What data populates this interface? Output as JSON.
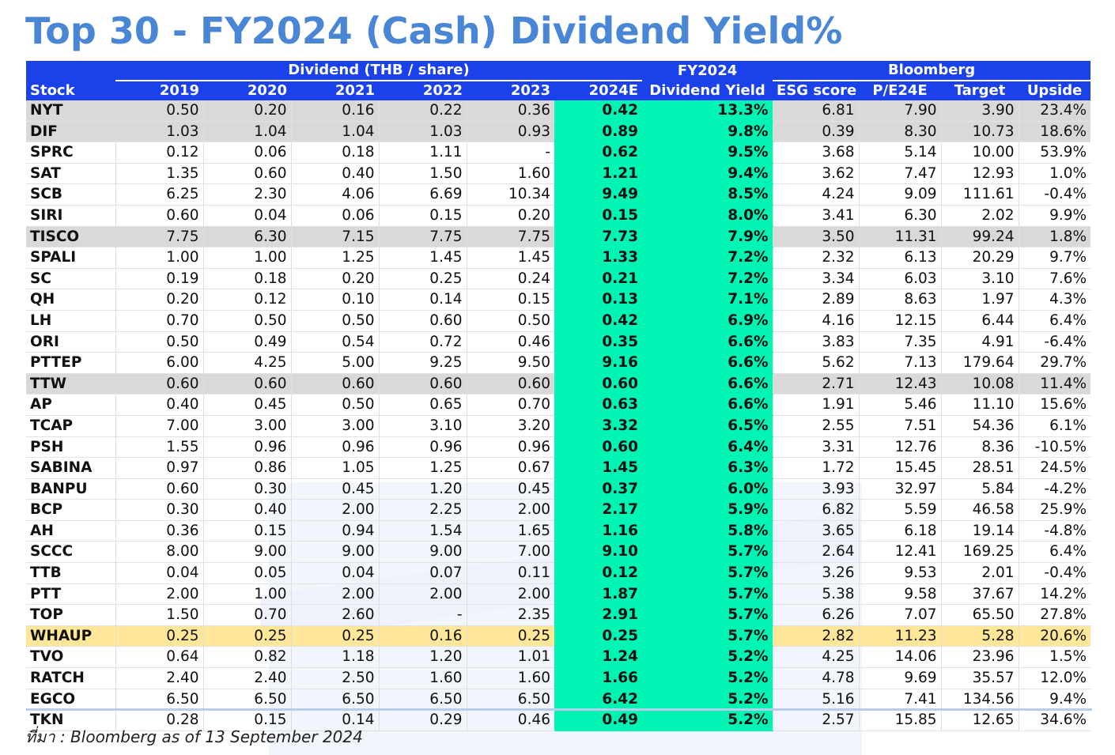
{
  "title": "Top 30 - FY2024 (Cash) Dividend Yield%",
  "header": {
    "stock": "Stock",
    "dividend_group": "Dividend (THB / share)",
    "years": [
      "2019",
      "2020",
      "2021",
      "2022",
      "2023",
      "2024E"
    ],
    "fy_top": "FY2024",
    "fy_bottom": "Dividend Yield",
    "bloomberg_group": "Bloomberg",
    "esg": "ESG score",
    "pe": "P/E24E",
    "target": "Target",
    "upside": "Upside"
  },
  "rows": [
    {
      "stock": "NYT",
      "y2019": "0.50",
      "y2020": "0.20",
      "y2021": "0.16",
      "y2022": "0.22",
      "y2023": "0.36",
      "y2024e": "0.42",
      "yield": "13.3%",
      "esg": "6.81",
      "pe": "7.90",
      "target": "3.90",
      "upside": "23.4%",
      "highlight": "grey"
    },
    {
      "stock": "DIF",
      "y2019": "1.03",
      "y2020": "1.04",
      "y2021": "1.04",
      "y2022": "1.03",
      "y2023": "0.93",
      "y2024e": "0.89",
      "yield": "9.8%",
      "esg": "0.39",
      "pe": "8.30",
      "target": "10.73",
      "upside": "18.6%",
      "highlight": "grey"
    },
    {
      "stock": "SPRC",
      "y2019": "0.12",
      "y2020": "0.06",
      "y2021": "0.18",
      "y2022": "1.11",
      "y2023": "-",
      "y2024e": "0.62",
      "yield": "9.5%",
      "esg": "3.68",
      "pe": "5.14",
      "target": "10.00",
      "upside": "53.9%",
      "highlight": ""
    },
    {
      "stock": "SAT",
      "y2019": "1.35",
      "y2020": "0.60",
      "y2021": "0.40",
      "y2022": "1.50",
      "y2023": "1.60",
      "y2024e": "1.21",
      "yield": "9.4%",
      "esg": "3.62",
      "pe": "7.47",
      "target": "12.93",
      "upside": "1.0%",
      "highlight": ""
    },
    {
      "stock": "SCB",
      "y2019": "6.25",
      "y2020": "2.30",
      "y2021": "4.06",
      "y2022": "6.69",
      "y2023": "10.34",
      "y2024e": "9.49",
      "yield": "8.5%",
      "esg": "4.24",
      "pe": "9.09",
      "target": "111.61",
      "upside": "-0.4%",
      "highlight": ""
    },
    {
      "stock": "SIRI",
      "y2019": "0.60",
      "y2020": "0.04",
      "y2021": "0.06",
      "y2022": "0.15",
      "y2023": "0.20",
      "y2024e": "0.15",
      "yield": "8.0%",
      "esg": "3.41",
      "pe": "6.30",
      "target": "2.02",
      "upside": "9.9%",
      "highlight": ""
    },
    {
      "stock": "TISCO",
      "y2019": "7.75",
      "y2020": "6.30",
      "y2021": "7.15",
      "y2022": "7.75",
      "y2023": "7.75",
      "y2024e": "7.73",
      "yield": "7.9%",
      "esg": "3.50",
      "pe": "11.31",
      "target": "99.24",
      "upside": "1.8%",
      "highlight": "grey"
    },
    {
      "stock": "SPALI",
      "y2019": "1.00",
      "y2020": "1.00",
      "y2021": "1.25",
      "y2022": "1.45",
      "y2023": "1.45",
      "y2024e": "1.33",
      "yield": "7.2%",
      "esg": "2.32",
      "pe": "6.13",
      "target": "20.29",
      "upside": "9.7%",
      "highlight": ""
    },
    {
      "stock": "SC",
      "y2019": "0.19",
      "y2020": "0.18",
      "y2021": "0.20",
      "y2022": "0.25",
      "y2023": "0.24",
      "y2024e": "0.21",
      "yield": "7.2%",
      "esg": "3.34",
      "pe": "6.03",
      "target": "3.10",
      "upside": "7.6%",
      "highlight": ""
    },
    {
      "stock": "QH",
      "y2019": "0.20",
      "y2020": "0.12",
      "y2021": "0.10",
      "y2022": "0.14",
      "y2023": "0.15",
      "y2024e": "0.13",
      "yield": "7.1%",
      "esg": "2.89",
      "pe": "8.63",
      "target": "1.97",
      "upside": "4.3%",
      "highlight": ""
    },
    {
      "stock": "LH",
      "y2019": "0.70",
      "y2020": "0.50",
      "y2021": "0.50",
      "y2022": "0.60",
      "y2023": "0.50",
      "y2024e": "0.42",
      "yield": "6.9%",
      "esg": "4.16",
      "pe": "12.15",
      "target": "6.44",
      "upside": "6.4%",
      "highlight": ""
    },
    {
      "stock": "ORI",
      "y2019": "0.50",
      "y2020": "0.49",
      "y2021": "0.54",
      "y2022": "0.72",
      "y2023": "0.46",
      "y2024e": "0.35",
      "yield": "6.6%",
      "esg": "3.83",
      "pe": "7.35",
      "target": "4.91",
      "upside": "-6.4%",
      "highlight": ""
    },
    {
      "stock": "PTTEP",
      "y2019": "6.00",
      "y2020": "4.25",
      "y2021": "5.00",
      "y2022": "9.25",
      "y2023": "9.50",
      "y2024e": "9.16",
      "yield": "6.6%",
      "esg": "5.62",
      "pe": "7.13",
      "target": "179.64",
      "upside": "29.7%",
      "highlight": ""
    },
    {
      "stock": "TTW",
      "y2019": "0.60",
      "y2020": "0.60",
      "y2021": "0.60",
      "y2022": "0.60",
      "y2023": "0.60",
      "y2024e": "0.60",
      "yield": "6.6%",
      "esg": "2.71",
      "pe": "12.43",
      "target": "10.08",
      "upside": "11.4%",
      "highlight": "grey"
    },
    {
      "stock": "AP",
      "y2019": "0.40",
      "y2020": "0.45",
      "y2021": "0.50",
      "y2022": "0.65",
      "y2023": "0.70",
      "y2024e": "0.63",
      "yield": "6.6%",
      "esg": "1.91",
      "pe": "5.46",
      "target": "11.10",
      "upside": "15.6%",
      "highlight": ""
    },
    {
      "stock": "TCAP",
      "y2019": "7.00",
      "y2020": "3.00",
      "y2021": "3.00",
      "y2022": "3.10",
      "y2023": "3.20",
      "y2024e": "3.32",
      "yield": "6.5%",
      "esg": "2.55",
      "pe": "7.51",
      "target": "54.36",
      "upside": "6.1%",
      "highlight": ""
    },
    {
      "stock": "PSH",
      "y2019": "1.55",
      "y2020": "0.96",
      "y2021": "0.96",
      "y2022": "0.96",
      "y2023": "0.96",
      "y2024e": "0.60",
      "yield": "6.4%",
      "esg": "3.31",
      "pe": "12.76",
      "target": "8.36",
      "upside": "-10.5%",
      "highlight": ""
    },
    {
      "stock": "SABINA",
      "y2019": "0.97",
      "y2020": "0.86",
      "y2021": "1.05",
      "y2022": "1.25",
      "y2023": "0.67",
      "y2024e": "1.45",
      "yield": "6.3%",
      "esg": "1.72",
      "pe": "15.45",
      "target": "28.51",
      "upside": "24.5%",
      "highlight": ""
    },
    {
      "stock": "BANPU",
      "y2019": "0.60",
      "y2020": "0.30",
      "y2021": "0.45",
      "y2022": "1.20",
      "y2023": "0.45",
      "y2024e": "0.37",
      "yield": "6.0%",
      "esg": "3.93",
      "pe": "32.97",
      "target": "5.84",
      "upside": "-4.2%",
      "highlight": ""
    },
    {
      "stock": "BCP",
      "y2019": "0.30",
      "y2020": "0.40",
      "y2021": "2.00",
      "y2022": "2.25",
      "y2023": "2.00",
      "y2024e": "2.17",
      "yield": "5.9%",
      "esg": "6.82",
      "pe": "5.59",
      "target": "46.58",
      "upside": "25.9%",
      "highlight": ""
    },
    {
      "stock": "AH",
      "y2019": "0.36",
      "y2020": "0.15",
      "y2021": "0.94",
      "y2022": "1.54",
      "y2023": "1.65",
      "y2024e": "1.16",
      "yield": "5.8%",
      "esg": "3.65",
      "pe": "6.18",
      "target": "19.14",
      "upside": "-4.8%",
      "highlight": ""
    },
    {
      "stock": "SCCC",
      "y2019": "8.00",
      "y2020": "9.00",
      "y2021": "9.00",
      "y2022": "9.00",
      "y2023": "7.00",
      "y2024e": "9.10",
      "yield": "5.7%",
      "esg": "2.64",
      "pe": "12.41",
      "target": "169.25",
      "upside": "6.4%",
      "highlight": ""
    },
    {
      "stock": "TTB",
      "y2019": "0.04",
      "y2020": "0.05",
      "y2021": "0.04",
      "y2022": "0.07",
      "y2023": "0.11",
      "y2024e": "0.12",
      "yield": "5.7%",
      "esg": "3.26",
      "pe": "9.53",
      "target": "2.01",
      "upside": "-0.4%",
      "highlight": ""
    },
    {
      "stock": "PTT",
      "y2019": "2.00",
      "y2020": "1.00",
      "y2021": "2.00",
      "y2022": "2.00",
      "y2023": "2.00",
      "y2024e": "1.87",
      "yield": "5.7%",
      "esg": "5.38",
      "pe": "9.58",
      "target": "37.67",
      "upside": "14.2%",
      "highlight": ""
    },
    {
      "stock": "TOP",
      "y2019": "1.50",
      "y2020": "0.70",
      "y2021": "2.60",
      "y2022": "-",
      "y2023": "2.35",
      "y2024e": "2.91",
      "yield": "5.7%",
      "esg": "6.26",
      "pe": "7.07",
      "target": "65.50",
      "upside": "27.8%",
      "highlight": ""
    },
    {
      "stock": "WHAUP",
      "y2019": "0.25",
      "y2020": "0.25",
      "y2021": "0.25",
      "y2022": "0.16",
      "y2023": "0.25",
      "y2024e": "0.25",
      "yield": "5.7%",
      "esg": "2.82",
      "pe": "11.23",
      "target": "5.28",
      "upside": "20.6%",
      "highlight": "yellow"
    },
    {
      "stock": "TVO",
      "y2019": "0.64",
      "y2020": "0.82",
      "y2021": "1.18",
      "y2022": "1.20",
      "y2023": "1.01",
      "y2024e": "1.24",
      "yield": "5.2%",
      "esg": "4.25",
      "pe": "14.06",
      "target": "23.96",
      "upside": "1.5%",
      "highlight": ""
    },
    {
      "stock": "RATCH",
      "y2019": "2.40",
      "y2020": "2.40",
      "y2021": "2.50",
      "y2022": "1.60",
      "y2023": "1.60",
      "y2024e": "1.66",
      "yield": "5.2%",
      "esg": "4.78",
      "pe": "9.69",
      "target": "35.57",
      "upside": "12.0%",
      "highlight": ""
    },
    {
      "stock": "EGCO",
      "y2019": "6.50",
      "y2020": "6.50",
      "y2021": "6.50",
      "y2022": "6.50",
      "y2023": "6.50",
      "y2024e": "6.42",
      "yield": "5.2%",
      "esg": "5.16",
      "pe": "7.41",
      "target": "134.56",
      "upside": "9.4%",
      "highlight": ""
    },
    {
      "stock": "TKN",
      "y2019": "0.28",
      "y2020": "0.15",
      "y2021": "0.14",
      "y2022": "0.29",
      "y2023": "0.46",
      "y2024e": "0.49",
      "yield": "5.2%",
      "esg": "2.57",
      "pe": "15.85",
      "target": "12.65",
      "upside": "34.6%",
      "highlight": ""
    }
  ],
  "source": "ที่มา : Bloomberg as of 13 September 2024",
  "colors": {
    "title": "#4a86d6",
    "header_bg": "#1a41ea",
    "estimate_bg": "#00f5b4",
    "grey_row": "#d9d9d9",
    "yellow_row": "#ffe699"
  }
}
